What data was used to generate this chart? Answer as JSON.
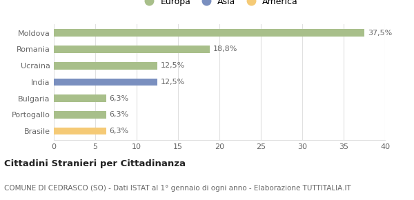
{
  "categories": [
    "Brasile",
    "Portogallo",
    "Bulgaria",
    "India",
    "Ucraina",
    "Romania",
    "Moldova"
  ],
  "values": [
    6.3,
    6.3,
    6.3,
    12.5,
    12.5,
    18.8,
    37.5
  ],
  "labels": [
    "6,3%",
    "6,3%",
    "6,3%",
    "12,5%",
    "12,5%",
    "18,8%",
    "37,5%"
  ],
  "colors": [
    "#f5ca76",
    "#a8bf8a",
    "#a8bf8a",
    "#7a8fbf",
    "#a8bf8a",
    "#a8bf8a",
    "#a8bf8a"
  ],
  "legend": [
    {
      "label": "Europa",
      "color": "#a8bf8a"
    },
    {
      "label": "Asia",
      "color": "#7a8fbf"
    },
    {
      "label": "America",
      "color": "#f5ca76"
    }
  ],
  "xlim": [
    0,
    40
  ],
  "xticks": [
    0,
    5,
    10,
    15,
    20,
    25,
    30,
    35,
    40
  ],
  "title_bold": "Cittadini Stranieri per Cittadinanza",
  "subtitle": "COMUNE DI CEDRASCO (SO) - Dati ISTAT al 1° gennaio di ogni anno - Elaborazione TUTTITALIA.IT",
  "bar_height": 0.45,
  "background_color": "#ffffff",
  "grid_color": "#e0e0e0",
  "value_fontsize": 8.0,
  "tick_label_fontsize": 8.0,
  "legend_fontsize": 9.0,
  "title_fontsize": 9.5,
  "subtitle_fontsize": 7.5
}
